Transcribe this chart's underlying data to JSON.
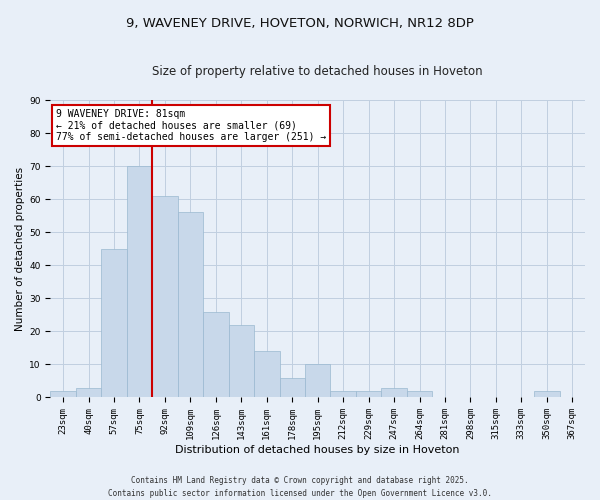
{
  "title_line1": "9, WAVENEY DRIVE, HOVETON, NORWICH, NR12 8DP",
  "title_line2": "Size of property relative to detached houses in Hoveton",
  "xlabel": "Distribution of detached houses by size in Hoveton",
  "ylabel": "Number of detached properties",
  "categories": [
    "23sqm",
    "40sqm",
    "57sqm",
    "75sqm",
    "92sqm",
    "109sqm",
    "126sqm",
    "143sqm",
    "161sqm",
    "178sqm",
    "195sqm",
    "212sqm",
    "229sqm",
    "247sqm",
    "264sqm",
    "281sqm",
    "298sqm",
    "315sqm",
    "333sqm",
    "350sqm",
    "367sqm"
  ],
  "values": [
    2,
    3,
    45,
    70,
    61,
    56,
    26,
    22,
    14,
    6,
    10,
    2,
    2,
    3,
    2,
    0,
    0,
    0,
    0,
    2,
    0
  ],
  "bar_color": "#c8d8ea",
  "bar_edge_color": "#9ab8d0",
  "grid_color": "#c0cfe0",
  "background_color": "#e8eff8",
  "vline_x_idx": 3,
  "vline_color": "#cc0000",
  "annotation_text": "9 WAVENEY DRIVE: 81sqm\n← 21% of detached houses are smaller (69)\n77% of semi-detached houses are larger (251) →",
  "annotation_box_color": "#ffffff",
  "annotation_box_edge_color": "#cc0000",
  "ylim": [
    0,
    90
  ],
  "yticks": [
    0,
    10,
    20,
    30,
    40,
    50,
    60,
    70,
    80,
    90
  ],
  "footnote": "Contains HM Land Registry data © Crown copyright and database right 2025.\nContains public sector information licensed under the Open Government Licence v3.0.",
  "title_fontsize": 9.5,
  "subtitle_fontsize": 8.5,
  "ylabel_fontsize": 7.5,
  "xlabel_fontsize": 8,
  "tick_fontsize": 6.5,
  "footnote_fontsize": 5.5,
  "annotation_fontsize": 7
}
